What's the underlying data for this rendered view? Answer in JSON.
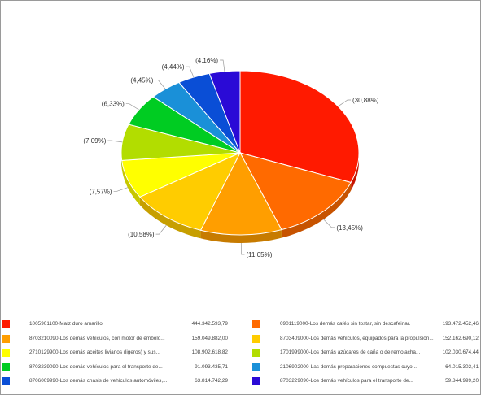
{
  "chart_data": {
    "type": "pie",
    "style": "3d",
    "slices": [
      {
        "code_label": "1005901100-Maíz duro amarillo.",
        "value": "444.342.593,79",
        "percent_label": "(30,88%)",
        "percent": 30.88,
        "color": "#ff1a00"
      },
      {
        "code_label": "0901119000-Los demás cafés sin tostar, sin descafeinar.",
        "value": "193.472.452,46",
        "percent_label": "(13,45%)",
        "percent": 13.45,
        "color": "#ff6a00"
      },
      {
        "code_label": "8703210090-Los demás vehículos, con motor de émbolo...",
        "value": "159.049.882,00",
        "percent_label": "(11,05%)",
        "percent": 11.05,
        "color": "#ff9e00"
      },
      {
        "code_label": "8703409000-Los demás vehículos, equipados para la propulsión...",
        "value": "152.162.690,12",
        "percent_label": "(10,58%)",
        "percent": 10.58,
        "color": "#ffcc00"
      },
      {
        "code_label": "2710129900-Los demás aceites livianos (ligeros) y sus...",
        "value": "108.902.618,82",
        "percent_label": "(7,57%)",
        "percent": 7.57,
        "color": "#ffff00"
      },
      {
        "code_label": "1701999000-Los demás azúcares de caña o de remolacha...",
        "value": "102.030.674,44",
        "percent_label": "(7,09%)",
        "percent": 7.09,
        "color": "#b2dd00"
      },
      {
        "code_label": "8703239090-Los demás vehículos para el transporte de...",
        "value": "91.093.435,71",
        "percent_label": "(6,33%)",
        "percent": 6.33,
        "color": "#00cc22"
      },
      {
        "code_label": "2106902000-Las demás preparaciones compuestas cuyo...",
        "value": "64.015.302,41",
        "percent_label": "(4,45%)",
        "percent": 4.45,
        "color": "#1a90d8"
      },
      {
        "code_label": "8706009990-Los demás chasis de vehículos automóviles,...",
        "value": "63.814.742,29",
        "percent_label": "(4,44%)",
        "percent": 4.44,
        "color": "#0a4ed6"
      },
      {
        "code_label": "8703229090-Los demás vehículos para el transporte de...",
        "value": "59.844.999,20",
        "percent_label": "(4,16%)",
        "percent": 4.16,
        "color": "#2a0ad6"
      }
    ]
  }
}
